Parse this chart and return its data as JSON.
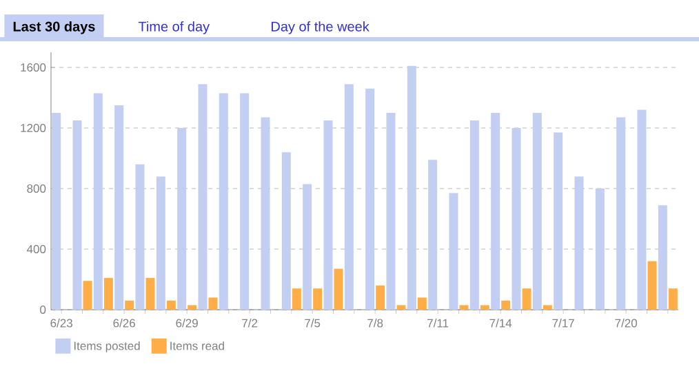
{
  "chart_data": {
    "type": "bar",
    "annotations": [
      "Last 30 days",
      "Time of day",
      "Day of the week"
    ],
    "categories": [
      "6/23",
      null,
      null,
      "6/26",
      null,
      null,
      "6/29",
      null,
      null,
      "7/2",
      null,
      null,
      "7/5",
      null,
      null,
      "7/8",
      null,
      null,
      "7/11",
      null,
      null,
      "7/14",
      null,
      null,
      "7/17",
      null,
      null,
      "7/20",
      null,
      null
    ],
    "series": [
      {
        "name": "Items posted",
        "color": "#c3cff2",
        "values": [
          1300,
          1250,
          1430,
          1350,
          960,
          880,
          1200,
          1490,
          1430,
          1430,
          1270,
          1040,
          830,
          1250,
          1490,
          1460,
          1300,
          1610,
          990,
          770,
          1250,
          1300,
          1200,
          1300,
          1170,
          880,
          800,
          1270,
          1320,
          690
        ]
      },
      {
        "name": "Items read",
        "color": "#ffad47",
        "values": [
          0,
          190,
          210,
          60,
          210,
          60,
          30,
          80,
          0,
          0,
          0,
          140,
          140,
          270,
          0,
          160,
          30,
          80,
          0,
          30,
          30,
          60,
          140,
          30,
          0,
          0,
          0,
          0,
          320,
          140
        ]
      }
    ],
    "ylim": [
      0,
      1700
    ],
    "yticks": [
      0,
      400,
      800,
      1200,
      1600
    ],
    "grid": "y",
    "legend": "bottom left"
  }
}
